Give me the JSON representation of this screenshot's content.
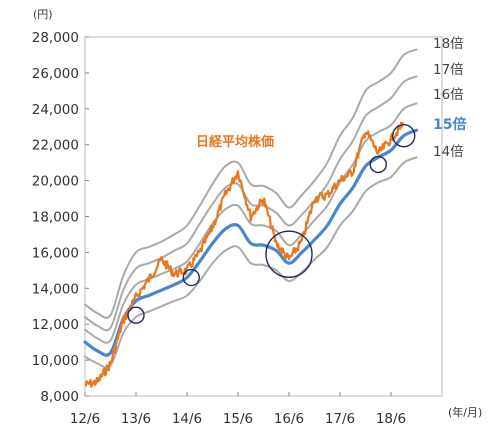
{
  "chart_data": {
    "type": "line",
    "y_unit": "(円)",
    "x_unit": "(年/月)",
    "ylim": [
      8000,
      28000
    ],
    "y_ticks": [
      "8,000",
      "10,000",
      "12,000",
      "14,000",
      "16,000",
      "18,000",
      "20,000",
      "22,000",
      "24,000",
      "26,000",
      "28,000"
    ],
    "x_ticks": [
      "12/6",
      "13/6",
      "14/6",
      "15/6",
      "16/6",
      "17/6",
      "18/6"
    ],
    "grid": false,
    "x": [
      "2012/06",
      "2012/09",
      "2012/12",
      "2013/03",
      "2013/06",
      "2013/09",
      "2013/12",
      "2014/03",
      "2014/06",
      "2014/09",
      "2014/12",
      "2015/03",
      "2015/06",
      "2015/09",
      "2015/12",
      "2016/03",
      "2016/06",
      "2016/09",
      "2016/12",
      "2017/03",
      "2017/06",
      "2017/09",
      "2017/12",
      "2018/03",
      "2018/06",
      "2018/09",
      "2018/12"
    ],
    "series": [
      {
        "name": "日経平均株価",
        "color": "#e87722",
        "values": [
          8600,
          8800,
          9800,
          12200,
          13500,
          14500,
          15600,
          14800,
          15000,
          16000,
          17400,
          19200,
          20500,
          18000,
          19000,
          16500,
          15600,
          16600,
          19000,
          19200,
          20000,
          20500,
          22800,
          21500,
          22300,
          23200,
          null
        ]
      },
      {
        "name": "18倍",
        "color": "#aaaaaa",
        "values": [
          13100,
          12600,
          12500,
          14700,
          16000,
          16300,
          16600,
          17000,
          17500,
          18600,
          19800,
          20800,
          21000,
          19800,
          19700,
          19300,
          18500,
          19200,
          20000,
          21000,
          22500,
          23500,
          25000,
          25500,
          26000,
          27000,
          27300
        ]
      },
      {
        "name": "17倍",
        "color": "#aaaaaa",
        "values": [
          12400,
          11900,
          11800,
          13900,
          15100,
          15400,
          15700,
          16100,
          16500,
          17600,
          18700,
          19600,
          19800,
          18700,
          18600,
          18200,
          17500,
          18100,
          18900,
          19800,
          21200,
          22200,
          23600,
          24100,
          24600,
          25500,
          25800
        ]
      },
      {
        "name": "16倍",
        "color": "#aaaaaa",
        "values": [
          11700,
          11200,
          11100,
          13100,
          14200,
          14500,
          14800,
          15100,
          15500,
          16500,
          17600,
          18400,
          18600,
          17600,
          17500,
          17200,
          16400,
          17000,
          17800,
          18600,
          19900,
          20900,
          22200,
          22700,
          23100,
          24000,
          24300
        ]
      },
      {
        "name": "15倍",
        "color": "#4a86d0",
        "values": [
          11000,
          10500,
          10400,
          12300,
          13300,
          13600,
          13900,
          14200,
          14600,
          15500,
          16500,
          17300,
          17500,
          16500,
          16400,
          16100,
          15400,
          16000,
          16700,
          17500,
          18700,
          19600,
          20800,
          21300,
          21700,
          22500,
          22800
        ]
      },
      {
        "name": "14倍",
        "color": "#aaaaaa",
        "values": [
          10200,
          9800,
          9700,
          11500,
          12400,
          12700,
          13000,
          13300,
          13600,
          14400,
          15400,
          16100,
          16300,
          15400,
          15300,
          15000,
          14400,
          14900,
          15600,
          16300,
          17500,
          18300,
          19400,
          19900,
          20200,
          21000,
          21300
        ]
      }
    ],
    "band_labels": [
      "18倍",
      "17倍",
      "16倍",
      "15倍",
      "14倍"
    ],
    "series_label": "日経平均株価",
    "annotations": [
      {
        "type": "circle",
        "x": "2013/06",
        "y": 12500
      },
      {
        "type": "circle",
        "x": "2014/07",
        "y": 14600
      },
      {
        "type": "circle",
        "x": "2016/06",
        "y": 15900
      },
      {
        "type": "circle",
        "x": "2018/03",
        "y": 20900
      },
      {
        "type": "circle",
        "x": "2018/09",
        "y": 22500
      }
    ]
  }
}
